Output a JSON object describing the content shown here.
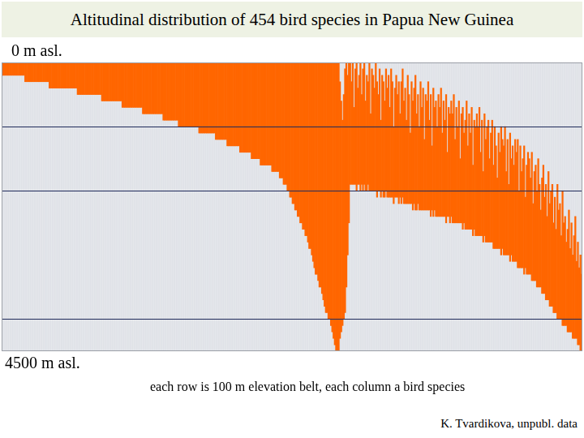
{
  "chart_data": {
    "type": "bar",
    "title": "Altitudinal distribution of 454 bird species in Papua New Guinea",
    "annotations": [
      "each row is 100 m elevation belt, each column a bird species",
      "K. Tvardikova, unpubl. data"
    ],
    "ylim": [
      4500,
      0
    ],
    "yticks": [
      {
        "value": 0,
        "label": "0 m asl."
      },
      {
        "value": 4500,
        "label": "4500 m asl."
      }
    ],
    "reference_lines": [
      1000,
      2000,
      4000
    ],
    "grid": false,
    "tick_labels": "y",
    "color": "#ff6600",
    "values": [
      [
        0,
        200
      ],
      [
        0,
        200
      ],
      [
        0,
        200
      ],
      [
        0,
        200
      ],
      [
        0,
        200
      ],
      [
        0,
        200
      ],
      [
        0,
        200
      ],
      [
        0,
        200
      ],
      [
        0,
        200
      ],
      [
        0,
        200
      ],
      [
        0,
        200
      ],
      [
        0,
        200
      ],
      [
        0,
        200
      ],
      [
        0,
        200
      ],
      [
        0,
        200
      ],
      [
        0,
        200
      ],
      [
        0,
        200
      ],
      [
        0,
        200
      ],
      [
        0,
        300
      ],
      [
        0,
        300
      ],
      [
        0,
        300
      ],
      [
        0,
        300
      ],
      [
        0,
        300
      ],
      [
        0,
        300
      ],
      [
        0,
        300
      ],
      [
        0,
        300
      ],
      [
        0,
        300
      ],
      [
        0,
        300
      ],
      [
        0,
        300
      ],
      [
        0,
        300
      ],
      [
        0,
        300
      ],
      [
        0,
        300
      ],
      [
        0,
        300
      ],
      [
        0,
        300
      ],
      [
        0,
        300
      ],
      [
        0,
        300
      ],
      [
        0,
        300
      ],
      [
        0,
        400
      ],
      [
        0,
        400
      ],
      [
        0,
        400
      ],
      [
        0,
        400
      ],
      [
        0,
        400
      ],
      [
        0,
        400
      ],
      [
        0,
        400
      ],
      [
        0,
        400
      ],
      [
        0,
        400
      ],
      [
        0,
        400
      ],
      [
        0,
        400
      ],
      [
        0,
        400
      ],
      [
        0,
        400
      ],
      [
        0,
        400
      ],
      [
        0,
        400
      ],
      [
        0,
        400
      ],
      [
        0,
        400
      ],
      [
        0,
        400
      ],
      [
        0,
        400
      ],
      [
        0,
        400
      ],
      [
        0,
        400
      ],
      [
        0,
        400
      ],
      [
        0,
        500
      ],
      [
        0,
        500
      ],
      [
        0,
        500
      ],
      [
        0,
        500
      ],
      [
        0,
        500
      ],
      [
        0,
        500
      ],
      [
        0,
        500
      ],
      [
        0,
        500
      ],
      [
        0,
        500
      ],
      [
        0,
        500
      ],
      [
        0,
        500
      ],
      [
        0,
        500
      ],
      [
        0,
        500
      ],
      [
        0,
        500
      ],
      [
        0,
        500
      ],
      [
        0,
        500
      ],
      [
        0,
        500
      ],
      [
        0,
        500
      ],
      [
        0,
        500
      ],
      [
        0,
        600
      ],
      [
        0,
        600
      ],
      [
        0,
        600
      ],
      [
        0,
        600
      ],
      [
        0,
        600
      ],
      [
        0,
        600
      ],
      [
        0,
        600
      ],
      [
        0,
        600
      ],
      [
        0,
        600
      ],
      [
        0,
        600
      ],
      [
        0,
        600
      ],
      [
        0,
        600
      ],
      [
        0,
        600
      ],
      [
        0,
        600
      ],
      [
        0,
        600
      ],
      [
        0,
        600
      ],
      [
        0,
        700
      ],
      [
        0,
        700
      ],
      [
        0,
        700
      ],
      [
        0,
        700
      ],
      [
        0,
        700
      ],
      [
        0,
        700
      ],
      [
        0,
        700
      ],
      [
        0,
        700
      ],
      [
        0,
        700
      ],
      [
        0,
        700
      ],
      [
        0,
        700
      ],
      [
        0,
        700
      ],
      [
        0,
        700
      ],
      [
        0,
        700
      ],
      [
        0,
        700
      ],
      [
        0,
        700
      ],
      [
        0,
        800
      ],
      [
        0,
        800
      ],
      [
        0,
        800
      ],
      [
        0,
        800
      ],
      [
        0,
        800
      ],
      [
        0,
        800
      ],
      [
        0,
        800
      ],
      [
        0,
        800
      ],
      [
        0,
        800
      ],
      [
        0,
        800
      ],
      [
        0,
        800
      ],
      [
        0,
        800
      ],
      [
        0,
        800
      ],
      [
        0,
        800
      ],
      [
        0,
        800
      ],
      [
        0,
        800
      ],
      [
        0,
        900
      ],
      [
        0,
        900
      ],
      [
        0,
        900
      ],
      [
        0,
        900
      ],
      [
        0,
        900
      ],
      [
        0,
        900
      ],
      [
        0,
        900
      ],
      [
        0,
        900
      ],
      [
        0,
        900
      ],
      [
        0,
        900
      ],
      [
        0,
        900
      ],
      [
        0,
        900
      ],
      [
        0,
        1000
      ],
      [
        0,
        1000
      ],
      [
        0,
        1000
      ],
      [
        0,
        1000
      ],
      [
        0,
        1000
      ],
      [
        0,
        1000
      ],
      [
        0,
        1000
      ],
      [
        0,
        1000
      ],
      [
        0,
        1000
      ],
      [
        0,
        1000
      ],
      [
        0,
        1000
      ],
      [
        0,
        1000
      ],
      [
        0,
        1000
      ],
      [
        0,
        1000
      ],
      [
        0,
        1000
      ],
      [
        0,
        1000
      ],
      [
        0,
        1100
      ],
      [
        0,
        1100
      ],
      [
        0,
        1100
      ],
      [
        0,
        1100
      ],
      [
        0,
        1100
      ],
      [
        0,
        1100
      ],
      [
        0,
        1100
      ],
      [
        0,
        1100
      ],
      [
        0,
        1100
      ],
      [
        0,
        1100
      ],
      [
        0,
        1100
      ],
      [
        0,
        1100
      ],
      [
        0,
        1100
      ],
      [
        0,
        1200
      ],
      [
        0,
        1200
      ],
      [
        0,
        1200
      ],
      [
        0,
        1200
      ],
      [
        0,
        1200
      ],
      [
        0,
        1200
      ],
      [
        0,
        1200
      ],
      [
        0,
        1200
      ],
      [
        0,
        1200
      ],
      [
        0,
        1300
      ],
      [
        0,
        1300
      ],
      [
        0,
        1300
      ],
      [
        0,
        1300
      ],
      [
        0,
        1300
      ],
      [
        0,
        1300
      ],
      [
        0,
        1300
      ],
      [
        0,
        1300
      ],
      [
        0,
        1300
      ],
      [
        0,
        1300
      ],
      [
        0,
        1400
      ],
      [
        0,
        1400
      ],
      [
        0,
        1400
      ],
      [
        0,
        1400
      ],
      [
        0,
        1400
      ],
      [
        0,
        1400
      ],
      [
        0,
        1400
      ],
      [
        0,
        1400
      ],
      [
        0,
        1400
      ],
      [
        0,
        1500
      ],
      [
        0,
        1500
      ],
      [
        0,
        1500
      ],
      [
        0,
        1500
      ],
      [
        0,
        1500
      ],
      [
        0,
        1500
      ],
      [
        0,
        1500
      ],
      [
        0,
        1600
      ],
      [
        0,
        1600
      ],
      [
        0,
        1600
      ],
      [
        0,
        1600
      ],
      [
        0,
        1600
      ],
      [
        0,
        1600
      ],
      [
        0,
        1600
      ],
      [
        0,
        1600
      ],
      [
        0,
        1600
      ],
      [
        0,
        1700
      ],
      [
        0,
        1700
      ],
      [
        0,
        1700
      ],
      [
        0,
        1700
      ],
      [
        0,
        1700
      ],
      [
        0,
        1700
      ],
      [
        0,
        1800
      ],
      [
        0,
        1800
      ],
      [
        0,
        1800
      ],
      [
        0,
        1900
      ],
      [
        0,
        1900
      ],
      [
        0,
        1900
      ],
      [
        0,
        2000
      ],
      [
        0,
        2000
      ],
      [
        0,
        2100
      ],
      [
        0,
        2100
      ],
      [
        0,
        2200
      ],
      [
        0,
        2200
      ],
      [
        0,
        2300
      ],
      [
        0,
        2300
      ],
      [
        0,
        2400
      ],
      [
        0,
        2400
      ],
      [
        0,
        2500
      ],
      [
        0,
        2500
      ],
      [
        0,
        2600
      ],
      [
        0,
        2600
      ],
      [
        0,
        2700
      ],
      [
        0,
        2700
      ],
      [
        0,
        2800
      ],
      [
        0,
        2900
      ],
      [
        0,
        2900
      ],
      [
        0,
        3000
      ],
      [
        0,
        3100
      ],
      [
        0,
        3200
      ],
      [
        0,
        3300
      ],
      [
        0,
        3300
      ],
      [
        0,
        3400
      ],
      [
        0,
        3500
      ],
      [
        0,
        3500
      ],
      [
        0,
        3600
      ],
      [
        0,
        3700
      ],
      [
        0,
        3800
      ],
      [
        0,
        3900
      ],
      [
        0,
        3900
      ],
      [
        0,
        4000
      ],
      [
        0,
        4000
      ],
      [
        0,
        4100
      ],
      [
        0,
        4200
      ],
      [
        0,
        4300
      ],
      [
        0,
        4400
      ],
      [
        0,
        4500
      ],
      [
        0,
        4500
      ],
      [
        0,
        4500
      ],
      [
        300,
        4300
      ],
      [
        600,
        4200
      ],
      [
        900,
        4100
      ],
      [
        500,
        4000
      ],
      [
        100,
        3900
      ],
      [
        0,
        3500
      ],
      [
        200,
        3000
      ],
      [
        0,
        2500
      ],
      [
        0,
        1900
      ],
      [
        300,
        1900
      ],
      [
        0,
        1900
      ],
      [
        700,
        1900
      ],
      [
        100,
        1900
      ],
      [
        0,
        2000
      ],
      [
        400,
        1900
      ],
      [
        200,
        1900
      ],
      [
        0,
        2000
      ],
      [
        500,
        1900
      ],
      [
        100,
        2000
      ],
      [
        0,
        1900
      ],
      [
        600,
        2000
      ],
      [
        200,
        2000
      ],
      [
        300,
        1900
      ],
      [
        0,
        2000
      ],
      [
        800,
        2000
      ],
      [
        100,
        2000
      ],
      [
        200,
        2000
      ],
      [
        400,
        2000
      ],
      [
        0,
        2000
      ],
      [
        300,
        2100
      ],
      [
        500,
        2000
      ],
      [
        100,
        2000
      ],
      [
        900,
        2100
      ],
      [
        200,
        2000
      ],
      [
        300,
        2100
      ],
      [
        600,
        2100
      ],
      [
        100,
        2000
      ],
      [
        400,
        2100
      ],
      [
        200,
        2100
      ],
      [
        700,
        2100
      ],
      [
        100,
        2100
      ],
      [
        300,
        2100
      ],
      [
        1000,
        2200
      ],
      [
        400,
        2100
      ],
      [
        200,
        2100
      ],
      [
        500,
        2100
      ],
      [
        300,
        2200
      ],
      [
        800,
        2100
      ],
      [
        300,
        2200
      ],
      [
        100,
        2100
      ],
      [
        600,
        2200
      ],
      [
        400,
        2200
      ],
      [
        900,
        2200
      ],
      [
        200,
        2200
      ],
      [
        500,
        2200
      ],
      [
        1100,
        2200
      ],
      [
        300,
        2200
      ],
      [
        600,
        2300
      ],
      [
        400,
        2200
      ],
      [
        200,
        2300
      ],
      [
        800,
        2300
      ],
      [
        500,
        2200
      ],
      [
        1000,
        2300
      ],
      [
        300,
        2300
      ],
      [
        700,
        2300
      ],
      [
        400,
        2300
      ],
      [
        1200,
        2300
      ],
      [
        500,
        2300
      ],
      [
        600,
        2300
      ],
      [
        300,
        2300
      ],
      [
        900,
        2300
      ],
      [
        500,
        2400
      ],
      [
        1300,
        2300
      ],
      [
        400,
        2400
      ],
      [
        700,
        2300
      ],
      [
        600,
        2400
      ],
      [
        1000,
        2400
      ],
      [
        500,
        2400
      ],
      [
        700,
        2400
      ],
      [
        400,
        2400
      ],
      [
        1100,
        2400
      ],
      [
        600,
        2400
      ],
      [
        900,
        2400
      ],
      [
        500,
        2500
      ],
      [
        1400,
        2400
      ],
      [
        700,
        2400
      ],
      [
        800,
        2500
      ],
      [
        600,
        2400
      ],
      [
        800,
        2500
      ],
      [
        500,
        2500
      ],
      [
        1200,
        2500
      ],
      [
        700,
        2500
      ],
      [
        1000,
        2500
      ],
      [
        600,
        2500
      ],
      [
        1500,
        2500
      ],
      [
        800,
        2500
      ],
      [
        700,
        2600
      ],
      [
        1100,
        2500
      ],
      [
        900,
        2600
      ],
      [
        600,
        2600
      ],
      [
        1300,
        2600
      ],
      [
        800,
        2600
      ],
      [
        1100,
        2600
      ],
      [
        700,
        2600
      ],
      [
        1600,
        2700
      ],
      [
        900,
        2600
      ],
      [
        1000,
        2700
      ],
      [
        800,
        2700
      ],
      [
        1000,
        2700
      ],
      [
        700,
        2700
      ],
      [
        1400,
        2700
      ],
      [
        900,
        2700
      ],
      [
        1700,
        2800
      ],
      [
        800,
        2700
      ],
      [
        1200,
        2800
      ],
      [
        1000,
        2800
      ],
      [
        900,
        2800
      ],
      [
        1500,
        2800
      ],
      [
        1100,
        2800
      ],
      [
        900,
        2800
      ],
      [
        1600,
        2900
      ],
      [
        1000,
        2900
      ],
      [
        1300,
        2900
      ],
      [
        1800,
        2900
      ],
      [
        1100,
        2900
      ],
      [
        1400,
        2900
      ],
      [
        1000,
        3000
      ],
      [
        1200,
        2900
      ],
      [
        1300,
        3000
      ],
      [
        1000,
        3000
      ],
      [
        1700,
        3000
      ],
      [
        1200,
        3000
      ],
      [
        1900,
        3000
      ],
      [
        1100,
        3100
      ],
      [
        1500,
        3000
      ],
      [
        1300,
        3100
      ],
      [
        1600,
        3100
      ],
      [
        1200,
        3100
      ],
      [
        1400,
        3100
      ],
      [
        1200,
        3200
      ],
      [
        2000,
        3200
      ],
      [
        1300,
        3200
      ],
      [
        1700,
        3200
      ],
      [
        1500,
        3200
      ],
      [
        1300,
        3300
      ],
      [
        2100,
        3200
      ],
      [
        1600,
        3300
      ],
      [
        1400,
        3300
      ],
      [
        1500,
        3300
      ],
      [
        1800,
        3300
      ],
      [
        1400,
        3400
      ],
      [
        2200,
        3400
      ],
      [
        1700,
        3400
      ],
      [
        1600,
        3400
      ],
      [
        2000,
        3500
      ],
      [
        1500,
        3500
      ],
      [
        1900,
        3500
      ],
      [
        2300,
        3500
      ],
      [
        1800,
        3600
      ],
      [
        1600,
        3600
      ],
      [
        2100,
        3600
      ],
      [
        1900,
        3700
      ],
      [
        2400,
        3700
      ],
      [
        1700,
        3700
      ],
      [
        2200,
        3800
      ],
      [
        2000,
        3800
      ],
      [
        1900,
        3800
      ],
      [
        2500,
        3900
      ],
      [
        2100,
        3900
      ],
      [
        2600,
        3900
      ],
      [
        1900,
        4000
      ],
      [
        2300,
        4000
      ],
      [
        2200,
        4000
      ],
      [
        2700,
        4000
      ],
      [
        2000,
        4100
      ],
      [
        2500,
        4100
      ],
      [
        2400,
        4100
      ],
      [
        2800,
        4100
      ],
      [
        2600,
        4200
      ],
      [
        2300,
        4200
      ],
      [
        2900,
        4200
      ],
      [
        2500,
        4200
      ],
      [
        3000,
        4300
      ],
      [
        2700,
        4300
      ],
      [
        2400,
        4300
      ],
      [
        3100,
        4300
      ],
      [
        2800,
        4400
      ],
      [
        3200,
        4400
      ],
      [
        3000,
        4500
      ],
      [
        3300,
        4500
      ]
    ]
  }
}
